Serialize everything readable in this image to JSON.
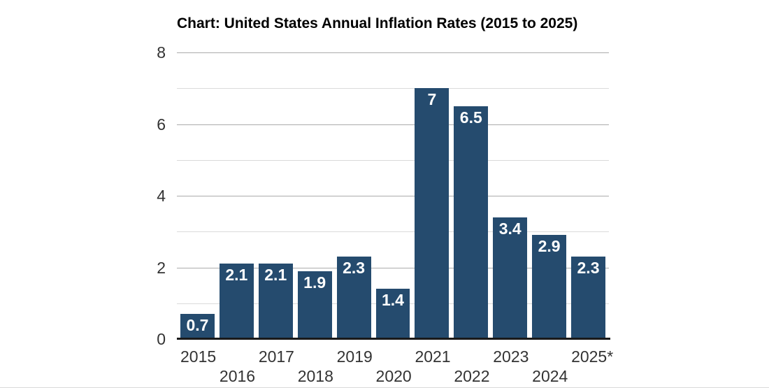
{
  "title": "Chart: United States Annual Inflation Rates (2015 to 2025)",
  "chart_data": {
    "type": "bar",
    "title": "Chart: United States Annual Inflation Rates (2015 to 2025)",
    "categories": [
      "2015",
      "2016",
      "2017",
      "2018",
      "2019",
      "2020",
      "2021",
      "2022",
      "2023",
      "2024",
      "2025*"
    ],
    "values": [
      0.7,
      2.1,
      2.1,
      1.9,
      2.3,
      1.4,
      7,
      6.5,
      3.4,
      2.9,
      2.3
    ],
    "bar_labels": [
      "0.7",
      "2.1",
      "2.1",
      "1.9",
      "2.3",
      "1.4",
      "7",
      "6.5",
      "3.4",
      "2.9",
      "2.3"
    ],
    "xlabel": "",
    "ylabel": "",
    "ylim": [
      0,
      8
    ],
    "yticks": [
      0,
      2,
      4,
      6,
      8
    ],
    "minor_gridlines": [
      1,
      3,
      5,
      7
    ],
    "grid": true,
    "legend": false,
    "bar_labels_position": "inside-top",
    "x_tick_layout": "staggered-two-rows"
  },
  "colors": {
    "bar": "#254b6e",
    "bar_label": "#ffffff",
    "major_grid": "#ababab",
    "minor_grid": "#dadada",
    "axis_line": "#1a1a1a",
    "tick_text": "#333333",
    "title_text": "#000000",
    "background": "#ffffff",
    "bottom_rule": "#d9d9d9"
  }
}
